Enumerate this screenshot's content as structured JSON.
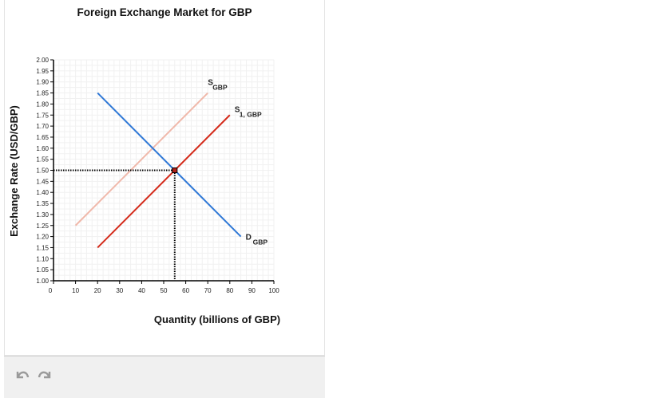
{
  "chart_data": {
    "type": "line",
    "title": "Foreign Exchange Market for GBP",
    "xlabel": "Quantity (billions of GBP)",
    "ylabel": "Exchange Rate (USD/GBP)",
    "xlim": [
      0,
      100
    ],
    "ylim": [
      1.0,
      2.0
    ],
    "x_ticks": [
      "0",
      "10",
      "20",
      "30",
      "40",
      "50",
      "60",
      "70",
      "80",
      "90",
      "100"
    ],
    "y_ticks": [
      "1.00",
      "1.05",
      "1.10",
      "1.15",
      "1.20",
      "1.25",
      "1.30",
      "1.35",
      "1.40",
      "1.45",
      "1.50",
      "1.55",
      "1.60",
      "1.65",
      "1.70",
      "1.75",
      "1.80",
      "1.85",
      "1.90",
      "1.95",
      "2.00"
    ],
    "grid": true,
    "series": [
      {
        "name": "S",
        "subscript": "GBP",
        "color": "#f0b8aa",
        "x": [
          10,
          70
        ],
        "y": [
          1.25,
          1.85
        ]
      },
      {
        "name": "S",
        "subscript": "1, GBP",
        "color": "#d42a1a",
        "x": [
          20,
          80
        ],
        "y": [
          1.15,
          1.75
        ]
      },
      {
        "name": "D",
        "subscript": "GBP",
        "color": "#2f78d6",
        "x": [
          20,
          85
        ],
        "y": [
          1.85,
          1.2
        ]
      }
    ],
    "equilibrium": {
      "x": 55,
      "y": 1.5
    }
  },
  "footer": {
    "undo_icon": "undo-icon",
    "redo_icon": "redo-icon"
  }
}
